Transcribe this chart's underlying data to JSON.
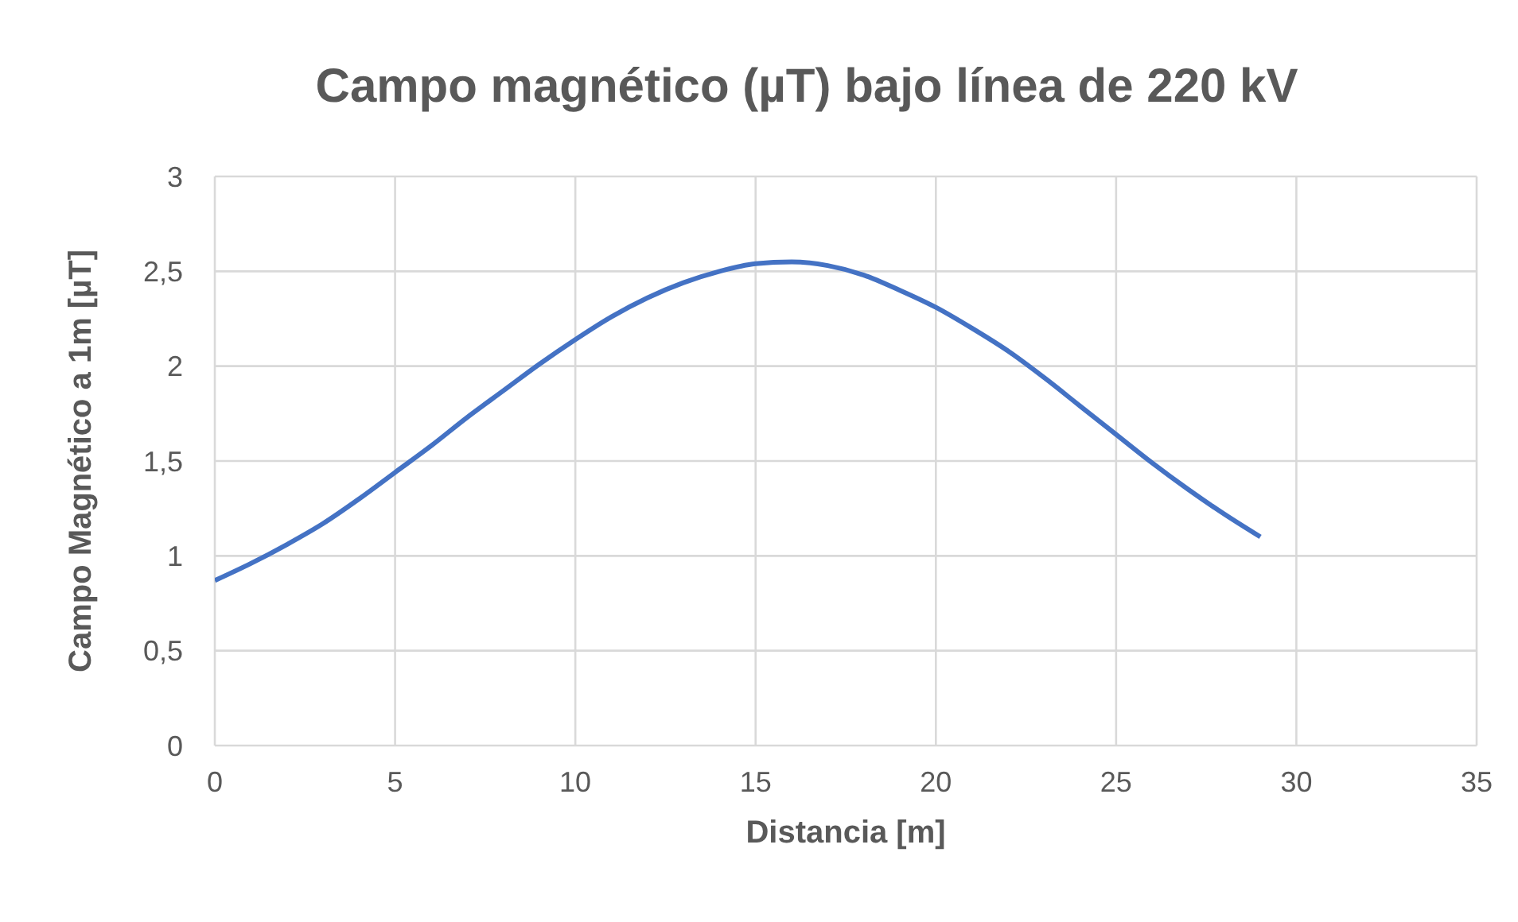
{
  "chart_data": {
    "type": "line",
    "title": "Campo magnético (µT) bajo línea de 220 kV",
    "xlabel": "Distancia [m]",
    "ylabel": "Campo Magnético a 1m [µT]",
    "x": [
      0,
      1,
      2,
      3,
      4,
      5,
      6,
      7,
      8,
      9,
      10,
      11,
      12,
      13,
      14,
      15,
      16,
      17,
      18,
      19,
      20,
      21,
      22,
      23,
      24,
      25,
      26,
      27,
      28,
      29
    ],
    "series": [
      {
        "color": "#4472c4",
        "values": [
          0.87,
          0.96,
          1.06,
          1.17,
          1.3,
          1.44,
          1.58,
          1.73,
          1.87,
          2.01,
          2.14,
          2.26,
          2.36,
          2.44,
          2.5,
          2.54,
          2.55,
          2.53,
          2.48,
          2.4,
          2.31,
          2.2,
          2.08,
          1.94,
          1.79,
          1.64,
          1.49,
          1.35,
          1.22,
          1.1
        ]
      }
    ],
    "xlim": [
      0,
      35
    ],
    "xticks": [
      0,
      5,
      10,
      15,
      20,
      25,
      30,
      35
    ],
    "ylim": [
      0,
      3
    ],
    "yticks": [
      0,
      {
        "value": 0.5,
        "label": "0,5"
      },
      1,
      {
        "value": 1.5,
        "label": "1,5"
      },
      2,
      {
        "value": 2.5,
        "label": "2,5"
      },
      3
    ],
    "grid": true,
    "legend": false,
    "marker": "none",
    "line_style": "solid"
  }
}
